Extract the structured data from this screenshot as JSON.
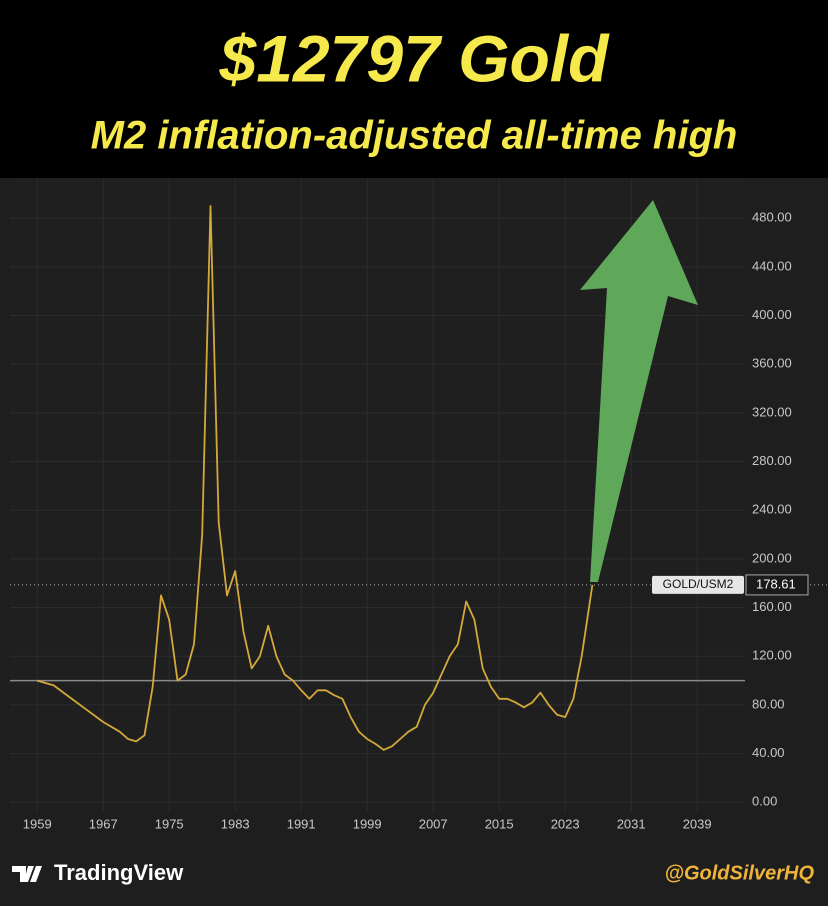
{
  "chart_data": {
    "type": "line",
    "title": "$12797 Gold",
    "subtitle": "M2 inflation-adjusted all-time high",
    "series": [
      {
        "name": "GOLD/USM2",
        "color": "#d4a93a",
        "x": [
          1959,
          1961,
          1963,
          1965,
          1967,
          1969,
          1970,
          1971,
          1972,
          1973,
          1974,
          1975,
          1976,
          1977,
          1978,
          1979,
          1980,
          1980.5,
          1981,
          1982,
          1983,
          1984,
          1985,
          1986,
          1987,
          1988,
          1989,
          1990,
          1991,
          1992,
          1993,
          1994,
          1995,
          1996,
          1997,
          1998,
          1999,
          2000,
          2001,
          2002,
          2003,
          2004,
          2005,
          2006,
          2007,
          2008,
          2009,
          2010,
          2011,
          2012,
          2013,
          2014,
          2015,
          2016,
          2017,
          2018,
          2019,
          2020,
          2021,
          2022,
          2023,
          2024,
          2025,
          2026.3
        ],
        "values": [
          100,
          96,
          86,
          76,
          66,
          58,
          52,
          50,
          55,
          95,
          170,
          150,
          100,
          105,
          130,
          220,
          490,
          360,
          230,
          170,
          190,
          140,
          110,
          120,
          145,
          120,
          105,
          100,
          92,
          85,
          92,
          92,
          88,
          85,
          70,
          58,
          52,
          48,
          43,
          46,
          52,
          58,
          62,
          80,
          90,
          105,
          120,
          130,
          165,
          150,
          110,
          95,
          85,
          85,
          82,
          78,
          82,
          90,
          80,
          72,
          70,
          85,
          120,
          178.61
        ]
      }
    ],
    "current": {
      "label": "GOLD/USM2",
      "value": 178.61
    },
    "reference_line": 100,
    "xlim": [
      1955.7,
      2044.8
    ],
    "xticks": [
      1959,
      1967,
      1975,
      1983,
      1991,
      1999,
      2007,
      2015,
      2023,
      2031,
      2039
    ],
    "ylim": [
      -8,
      513
    ],
    "yticks": [
      {
        "value": 0,
        "label": "0.00"
      },
      {
        "value": 40,
        "label": "40.00"
      },
      {
        "value": 80,
        "label": "80.00"
      },
      {
        "value": 120,
        "label": "120.00"
      },
      {
        "value": 160,
        "label": "160.00"
      },
      {
        "value": 200,
        "label": "200.00"
      },
      {
        "value": 240,
        "label": "240.00"
      },
      {
        "value": 280,
        "label": "280.00"
      },
      {
        "value": 320,
        "label": "320.00"
      },
      {
        "value": 360,
        "label": "360.00"
      },
      {
        "value": 400,
        "label": "400.00"
      },
      {
        "value": 440,
        "label": "440.00"
      },
      {
        "value": 480,
        "label": "480.00"
      }
    ],
    "grid": true
  },
  "footer": {
    "brand": "TradingView",
    "handle": "@GoldSilverHQ"
  }
}
